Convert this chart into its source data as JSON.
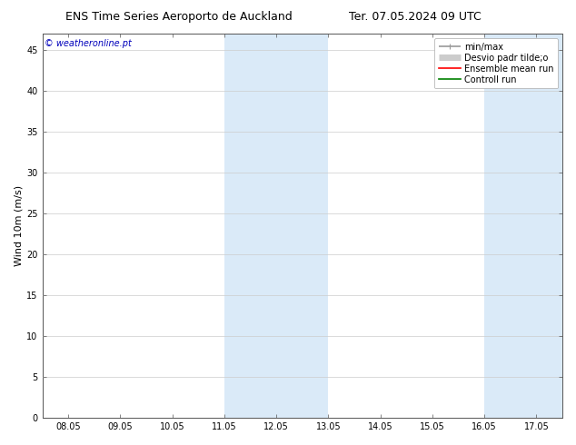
{
  "title_left": "ENS Time Series Aeroporto de Auckland",
  "title_right": "Ter. 07.05.2024 09 UTC",
  "ylabel": "Wind 10m (m/s)",
  "watermark": "© weatheronline.pt",
  "xtick_labels": [
    "08.05",
    "09.05",
    "10.05",
    "11.05",
    "12.05",
    "13.05",
    "14.05",
    "15.05",
    "16.05",
    "17.05"
  ],
  "xtick_values": [
    0,
    1,
    2,
    3,
    4,
    5,
    6,
    7,
    8,
    9
  ],
  "ytick_values": [
    0,
    5,
    10,
    15,
    20,
    25,
    30,
    35,
    40,
    45
  ],
  "ylim": [
    0,
    47
  ],
  "xlim": [
    -0.5,
    9.5
  ],
  "night_bands": [
    {
      "xmin": 3.0,
      "xmax": 5.0
    },
    {
      "xmin": 8.0,
      "xmax": 9.5
    }
  ],
  "legend_entries": [
    {
      "label": "min/max",
      "color": "#999999",
      "lw": 1.2,
      "style": "line_with_caps"
    },
    {
      "label": "Desvio padr tilde;o",
      "color": "#cccccc",
      "lw": 5,
      "style": "thick"
    },
    {
      "label": "Ensemble mean run",
      "color": "red",
      "lw": 1.2,
      "style": "line"
    },
    {
      "label": "Controll run",
      "color": "green",
      "lw": 1.2,
      "style": "line"
    }
  ],
  "bg_color": "#ffffff",
  "plot_bg_color": "#ffffff",
  "grid_color": "#cccccc",
  "night_color": "#daeaf8",
  "title_fontsize": 9,
  "axis_label_fontsize": 8,
  "tick_fontsize": 7,
  "watermark_color": "#0000bb",
  "watermark_fontsize": 7,
  "legend_fontsize": 7
}
